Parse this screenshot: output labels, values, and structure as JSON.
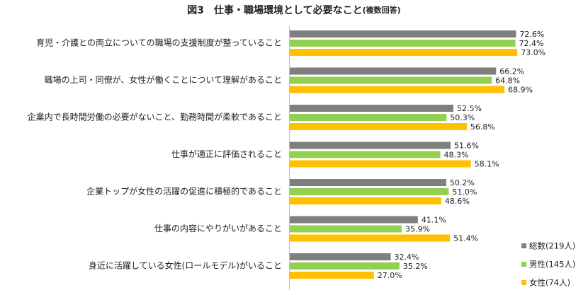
{
  "chart_data": {
    "type": "bar",
    "orientation": "horizontal",
    "title": "図3　仕事・職場環境として必要なこと",
    "subtitle": "(複数回答)",
    "categories": [
      "育児・介護との両立についての職場の支援制度が整っていること",
      "職場の上司・同僚が、女性が働くことについて理解があること",
      "企業内で長時間労働の必要がないこと、勤務時間が柔軟であること",
      "仕事が適正に評価されること",
      "企業トップが女性の活躍の促進に積極的であること",
      "仕事の内容にやりがいがあること",
      "身近に活躍している女性(ロールモデル)がいること"
    ],
    "series": [
      {
        "name": "総数(219人)",
        "color": "#7f7f7f",
        "values": [
          72.6,
          66.2,
          52.5,
          51.6,
          50.2,
          41.1,
          32.4
        ],
        "value_labels": [
          "72.6%",
          "66.2%",
          "52.5%",
          "51.6%",
          "50.2%",
          "41.1%",
          "32.4%"
        ]
      },
      {
        "name": "男性(145人)",
        "color": "#92d050",
        "values": [
          72.4,
          64.8,
          50.3,
          48.3,
          51.0,
          35.9,
          35.2
        ],
        "value_labels": [
          "72.4%",
          "64.8%",
          "50.3%",
          "48.3%",
          "51.0%",
          "35.9%",
          "35.2%"
        ]
      },
      {
        "name": "女性(74人)",
        "color": "#ffc000",
        "values": [
          73.0,
          68.9,
          56.8,
          58.1,
          48.6,
          51.4,
          27.0
        ],
        "value_labels": [
          "73.0%",
          "68.9%",
          "56.8%",
          "58.1%",
          "48.6%",
          "51.4%",
          "27.0%"
        ]
      }
    ],
    "legend": "lower right"
  }
}
